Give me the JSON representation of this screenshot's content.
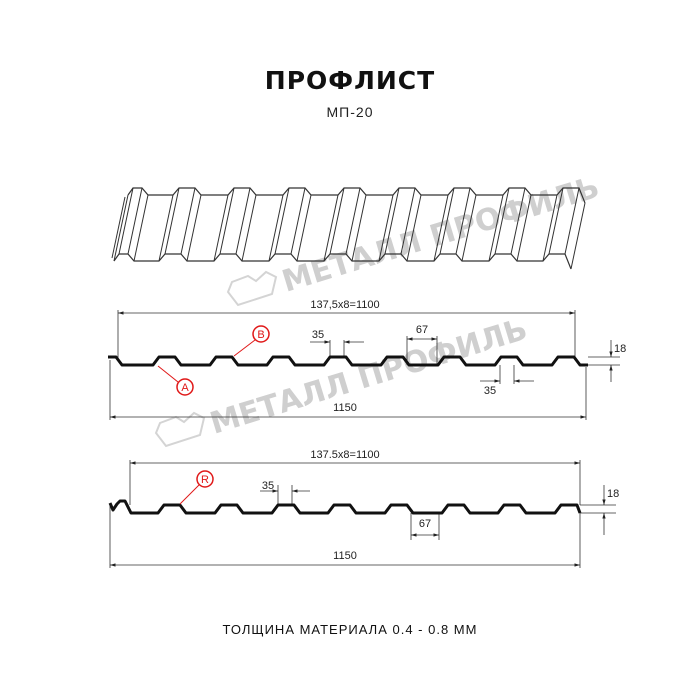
{
  "header": {
    "title": "ПРОФЛИСТ",
    "subtitle": "МП-20"
  },
  "watermark": {
    "text": "МЕТАЛЛ ПРОФИЛЬ"
  },
  "section_1": {
    "pitch_label": "137,5x8=1100",
    "width_label": "1150",
    "crest_width_label": "35",
    "trough_width_label": "67",
    "bottom_width_label": "35",
    "height_label": "18",
    "marker_b": "B",
    "marker_a": "A"
  },
  "section_2": {
    "pitch_label": "137.5x8=1100",
    "width_label": "1150",
    "crest_width_label": "35",
    "trough_width_label": "67",
    "height_label": "18",
    "marker_r": "R"
  },
  "footer": {
    "thickness": "ТОЛЩИНА МАТЕРИАЛА 0.4 - 0.8 ММ"
  },
  "colors": {
    "line": "#111111",
    "marker": "#e01818",
    "watermark": "#cfcfcf"
  }
}
